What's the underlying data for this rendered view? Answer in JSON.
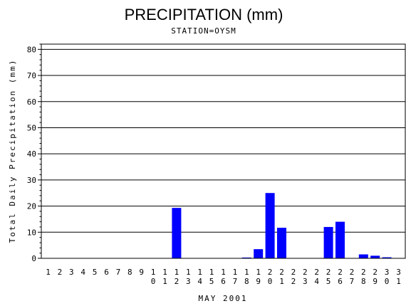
{
  "chart_data": {
    "type": "bar",
    "title": "PRECIPITATION (mm)",
    "subtitle": "STATION=OYSM",
    "xlabel": "MAY 2001",
    "ylabel": "Total Daily Precipitation (mm)",
    "ylim": [
      0,
      82
    ],
    "yticks": [
      0,
      10,
      20,
      30,
      40,
      50,
      60,
      70,
      80
    ],
    "grid": true,
    "bar_color": "#0000ff",
    "categories": [
      "1",
      "2",
      "3",
      "4",
      "5",
      "6",
      "7",
      "8",
      "9",
      "10",
      "11",
      "12",
      "13",
      "14",
      "15",
      "16",
      "17",
      "18",
      "19",
      "20",
      "21",
      "22",
      "23",
      "24",
      "25",
      "26",
      "27",
      "28",
      "29",
      "30",
      "31"
    ],
    "values": [
      0,
      0,
      0,
      0,
      0,
      0,
      0,
      0,
      0,
      0,
      0,
      19.3,
      0,
      0,
      0,
      0,
      0,
      0.3,
      3.5,
      25,
      11.7,
      0,
      0,
      0,
      12,
      14,
      0,
      1.5,
      1,
      0.4,
      0
    ]
  }
}
